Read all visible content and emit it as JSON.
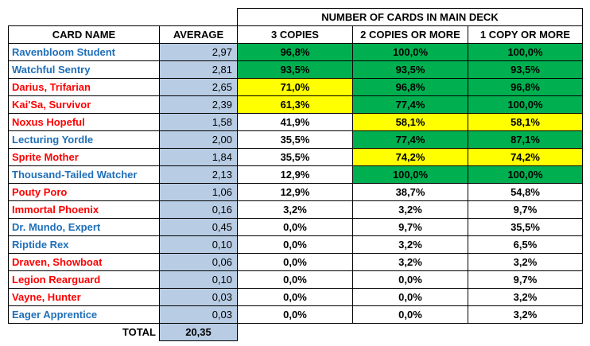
{
  "header": {
    "group_title": "NUMBER OF CARDS IN MAIN DECK",
    "col_name": "CARD NAME",
    "col_avg": "AVERAGE",
    "col_3": "3 COPIES",
    "col_2": "2 COPIES OR MORE",
    "col_1": "1 COPY OR MORE"
  },
  "rows": [
    {
      "name": "Ravenbloom Student",
      "name_color": "blue",
      "avg": "2,97",
      "p3": "96,8%",
      "p2": "100,0%",
      "p1": "100,0%",
      "f3": "green",
      "f2": "green",
      "f1": "green"
    },
    {
      "name": "Watchful Sentry",
      "name_color": "blue",
      "avg": "2,81",
      "p3": "93,5%",
      "p2": "93,5%",
      "p1": "93,5%",
      "f3": "green",
      "f2": "green",
      "f1": "green"
    },
    {
      "name": "Darius, Trifarian",
      "name_color": "red",
      "avg": "2,65",
      "p3": "71,0%",
      "p2": "96,8%",
      "p1": "96,8%",
      "f3": "yellow",
      "f2": "green",
      "f1": "green"
    },
    {
      "name": "Kai'Sa, Survivor",
      "name_color": "red",
      "avg": "2,39",
      "p3": "61,3%",
      "p2": "77,4%",
      "p1": "100,0%",
      "f3": "yellow",
      "f2": "green",
      "f1": "green"
    },
    {
      "name": "Noxus Hopeful",
      "name_color": "red",
      "avg": "1,58",
      "p3": "41,9%",
      "p2": "58,1%",
      "p1": "58,1%",
      "f3": "",
      "f2": "yellow",
      "f1": "yellow"
    },
    {
      "name": "Lecturing Yordle",
      "name_color": "blue",
      "avg": "2,00",
      "p3": "35,5%",
      "p2": "77,4%",
      "p1": "87,1%",
      "f3": "",
      "f2": "green",
      "f1": "green"
    },
    {
      "name": "Sprite Mother",
      "name_color": "red",
      "avg": "1,84",
      "p3": "35,5%",
      "p2": "74,2%",
      "p1": "74,2%",
      "f3": "",
      "f2": "yellow",
      "f1": "yellow"
    },
    {
      "name": "Thousand-Tailed Watcher",
      "name_color": "blue",
      "avg": "2,13",
      "p3": "12,9%",
      "p2": "100,0%",
      "p1": "100,0%",
      "f3": "",
      "f2": "green",
      "f1": "green"
    },
    {
      "name": "Pouty Poro",
      "name_color": "red",
      "avg": "1,06",
      "p3": "12,9%",
      "p2": "38,7%",
      "p1": "54,8%",
      "f3": "",
      "f2": "",
      "f1": ""
    },
    {
      "name": "Immortal Phoenix",
      "name_color": "red",
      "avg": "0,16",
      "p3": "3,2%",
      "p2": "3,2%",
      "p1": "9,7%",
      "f3": "",
      "f2": "",
      "f1": ""
    },
    {
      "name": "Dr. Mundo, Expert",
      "name_color": "blue",
      "avg": "0,45",
      "p3": "0,0%",
      "p2": "9,7%",
      "p1": "35,5%",
      "f3": "",
      "f2": "",
      "f1": ""
    },
    {
      "name": "Riptide Rex",
      "name_color": "blue",
      "avg": "0,10",
      "p3": "0,0%",
      "p2": "3,2%",
      "p1": "6,5%",
      "f3": "",
      "f2": "",
      "f1": ""
    },
    {
      "name": "Draven, Showboat",
      "name_color": "red",
      "avg": "0,06",
      "p3": "0,0%",
      "p2": "3,2%",
      "p1": "3,2%",
      "f3": "",
      "f2": "",
      "f1": ""
    },
    {
      "name": "Legion Rearguard",
      "name_color": "red",
      "avg": "0,10",
      "p3": "0,0%",
      "p2": "0,0%",
      "p1": "9,7%",
      "f3": "",
      "f2": "",
      "f1": ""
    },
    {
      "name": "Vayne, Hunter",
      "name_color": "red",
      "avg": "0,03",
      "p3": "0,0%",
      "p2": "0,0%",
      "p1": "3,2%",
      "f3": "",
      "f2": "",
      "f1": ""
    },
    {
      "name": "Eager Apprentice",
      "name_color": "blue",
      "avg": "0,03",
      "p3": "0,0%",
      "p2": "0,0%",
      "p1": "3,2%",
      "f3": "",
      "f2": "",
      "f1": ""
    }
  ],
  "footer": {
    "total_label": "TOTAL",
    "total_value": "20,35"
  },
  "colors": {
    "blue": "#1f6fb8",
    "red": "#ff0000",
    "green": "#00b050",
    "yellow": "#ffff00",
    "avg_bg": "#b8cce4"
  }
}
